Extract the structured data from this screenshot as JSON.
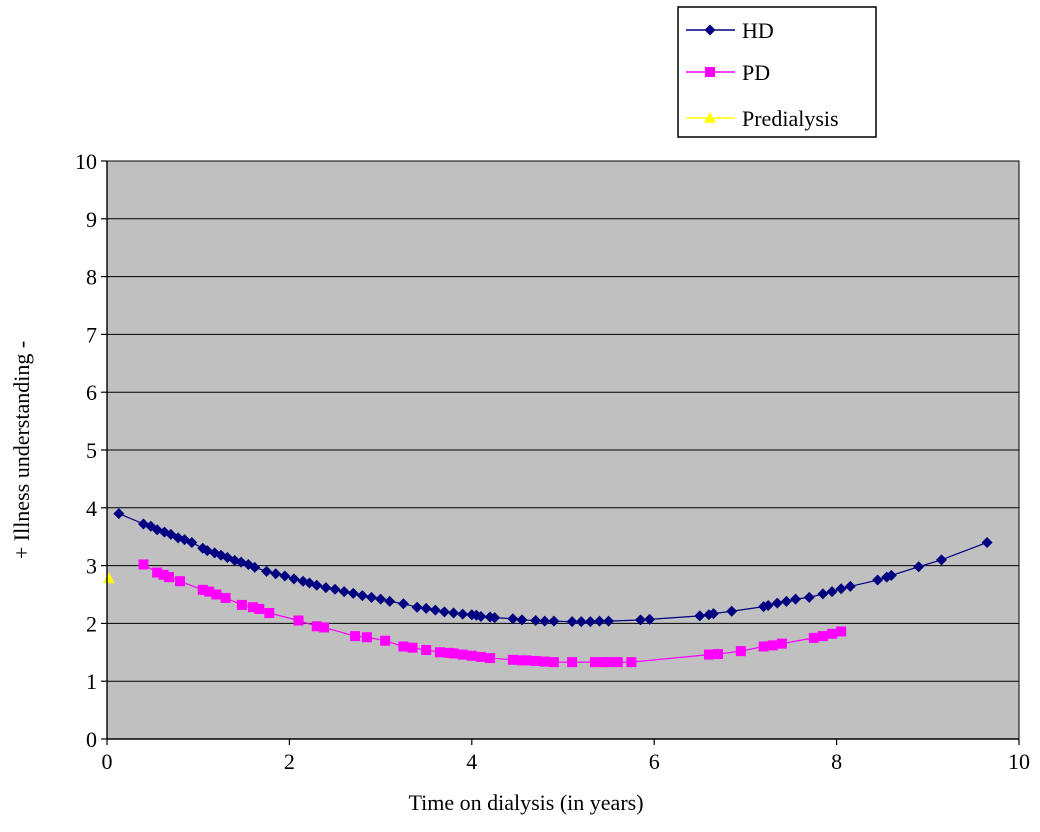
{
  "chart_data": {
    "type": "line",
    "title": "",
    "xlabel": "Time on dialysis (in years)",
    "ylabel": "+ Illness understanding -",
    "xlim": [
      0,
      10
    ],
    "ylim": [
      0,
      10
    ],
    "x_ticks": [
      "0",
      "2",
      "4",
      "6",
      "8",
      "10"
    ],
    "y_ticks": [
      "0",
      "1",
      "2",
      "3",
      "4",
      "5",
      "6",
      "7",
      "8",
      "9",
      "10"
    ],
    "grid": "horizontal",
    "legend_position": "top-right",
    "series": [
      {
        "name": "HD",
        "color": "#000080",
        "marker": "diamond",
        "x": [
          0.13,
          0.4,
          0.48,
          0.55,
          0.63,
          0.7,
          0.78,
          0.85,
          0.93,
          1.05,
          1.1,
          1.18,
          1.25,
          1.32,
          1.4,
          1.47,
          1.55,
          1.62,
          1.75,
          1.85,
          1.95,
          2.05,
          2.15,
          2.22,
          2.3,
          2.4,
          2.5,
          2.6,
          2.7,
          2.8,
          2.9,
          3.0,
          3.1,
          3.25,
          3.4,
          3.5,
          3.6,
          3.7,
          3.8,
          3.9,
          4.0,
          4.05,
          4.1,
          4.2,
          4.25,
          4.45,
          4.55,
          4.7,
          4.8,
          4.9,
          5.1,
          5.2,
          5.3,
          5.4,
          5.5,
          5.85,
          5.95,
          6.5,
          6.6,
          6.65,
          6.85,
          7.2,
          7.25,
          7.35,
          7.45,
          7.55,
          7.7,
          7.85,
          7.95,
          8.05,
          8.15,
          8.45,
          8.55,
          8.6,
          8.9,
          9.15,
          9.65
        ],
        "y": [
          3.9,
          3.72,
          3.68,
          3.62,
          3.58,
          3.54,
          3.48,
          3.45,
          3.4,
          3.3,
          3.26,
          3.22,
          3.18,
          3.14,
          3.09,
          3.06,
          3.02,
          2.97,
          2.9,
          2.86,
          2.82,
          2.77,
          2.73,
          2.7,
          2.66,
          2.62,
          2.59,
          2.55,
          2.52,
          2.48,
          2.45,
          2.42,
          2.38,
          2.34,
          2.28,
          2.26,
          2.23,
          2.2,
          2.18,
          2.16,
          2.15,
          2.14,
          2.12,
          2.11,
          2.1,
          2.08,
          2.06,
          2.05,
          2.04,
          2.04,
          2.03,
          2.03,
          2.03,
          2.04,
          2.04,
          2.06,
          2.07,
          2.13,
          2.15,
          2.17,
          2.21,
          2.29,
          2.31,
          2.35,
          2.38,
          2.42,
          2.45,
          2.51,
          2.55,
          2.6,
          2.64,
          2.75,
          2.8,
          2.83,
          2.98,
          3.1,
          3.4
        ]
      },
      {
        "name": "PD",
        "color": "#ff00ff",
        "marker": "square",
        "x": [
          0.4,
          0.55,
          0.62,
          0.68,
          0.8,
          1.05,
          1.12,
          1.2,
          1.3,
          1.48,
          1.6,
          1.67,
          1.78,
          2.1,
          2.3,
          2.38,
          2.72,
          2.85,
          3.05,
          3.25,
          3.35,
          3.5,
          3.65,
          3.75,
          3.8,
          3.9,
          4.0,
          4.1,
          4.2,
          4.45,
          4.55,
          4.6,
          4.7,
          4.8,
          4.9,
          5.1,
          5.35,
          5.45,
          5.5,
          5.6,
          5.75,
          6.6,
          6.7,
          6.95,
          7.2,
          7.3,
          7.4,
          7.75,
          7.85,
          7.95,
          8.05
        ],
        "y": [
          3.02,
          2.88,
          2.84,
          2.8,
          2.73,
          2.58,
          2.55,
          2.5,
          2.44,
          2.32,
          2.28,
          2.25,
          2.18,
          2.05,
          1.95,
          1.93,
          1.78,
          1.76,
          1.7,
          1.6,
          1.58,
          1.54,
          1.5,
          1.49,
          1.48,
          1.46,
          1.44,
          1.42,
          1.4,
          1.37,
          1.36,
          1.36,
          1.35,
          1.34,
          1.33,
          1.33,
          1.33,
          1.33,
          1.33,
          1.33,
          1.33,
          1.46,
          1.47,
          1.52,
          1.6,
          1.62,
          1.65,
          1.75,
          1.78,
          1.82,
          1.86
        ]
      },
      {
        "name": "Predialysis",
        "color": "#ffff00",
        "marker": "triangle",
        "x": [
          0.02
        ],
        "y": [
          2.78
        ]
      }
    ]
  }
}
